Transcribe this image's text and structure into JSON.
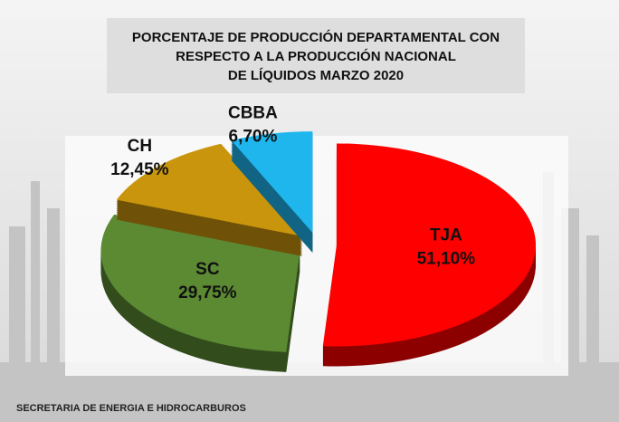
{
  "chart_data": {
    "type": "pie",
    "title": [
      "PORCENTAJE DE PRODUCCIÓN DEPARTAMENTAL CON",
      "RESPECTO A LA PRODUCCIÓN NACIONAL",
      "DE LÍQUIDOS MARZO 2020"
    ],
    "categories": [
      "TJA",
      "SC",
      "CH",
      "CBBA"
    ],
    "values": [
      51.1,
      29.75,
      12.45,
      6.7
    ],
    "value_labels": [
      "51,10%",
      "29,75%",
      "12,45%",
      "6,70%"
    ],
    "colors": [
      "#ff0000",
      "#5b8a33",
      "#c9950c",
      "#1fb6ee"
    ],
    "source": "SECRETARIA DE ENERGIA E HIDROCARBUROS"
  }
}
